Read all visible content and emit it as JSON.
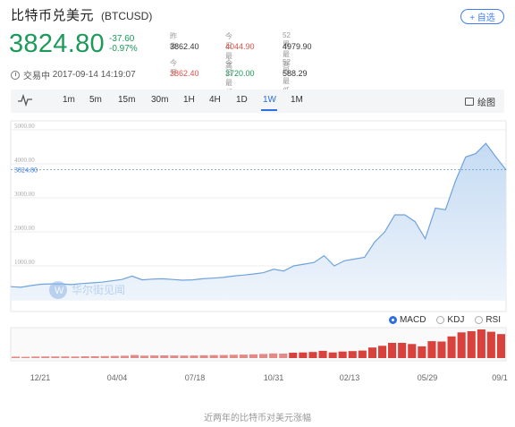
{
  "header": {
    "title": "比特币兑美元",
    "symbol": "(BTCUSD)",
    "add_label": "+ 自选"
  },
  "quote": {
    "price": "3824.80",
    "change": "-37.60",
    "change_pct": "-0.97%"
  },
  "stats": [
    {
      "label": "昨收",
      "value": "3862.40",
      "tone": "plain"
    },
    {
      "label": "今日最高",
      "value": "4044.90",
      "tone": "red"
    },
    {
      "label": "52周最高",
      "value": "4979.90",
      "tone": "plain"
    },
    {
      "label": "今开",
      "value": "3862.40",
      "tone": "red"
    },
    {
      "label": "今日最低",
      "value": "3720.00",
      "tone": "green"
    },
    {
      "label": "52周最低",
      "value": "588.29",
      "tone": "plain"
    }
  ],
  "status": {
    "state": "交易中",
    "datetime": "2017-09-14 14:19:07"
  },
  "toolbar": {
    "intervals": [
      "1m",
      "5m",
      "15m",
      "30m",
      "1H",
      "4H",
      "1D",
      "1W",
      "1M"
    ],
    "active": "1W",
    "draw_label": "绘图"
  },
  "indicators": {
    "items": [
      "MACD",
      "KDJ",
      "RSI"
    ],
    "active": "MACD"
  },
  "watermark": "华尔街见闻",
  "chart_data": {
    "type": "area",
    "current_label": "3824.80",
    "ylim": [
      0,
      5000
    ],
    "y_ticks": [
      "5000.00",
      "4000.00",
      "3000.00",
      "2000.00",
      "1000.00",
      "0.00"
    ],
    "x_ticks": [
      "12/21",
      "04/04",
      "07/18",
      "10/31",
      "02/13",
      "05/29",
      "09/1"
    ],
    "values": [
      390,
      370,
      420,
      460,
      470,
      470,
      450,
      480,
      500,
      520,
      560,
      600,
      700,
      590,
      610,
      620,
      600,
      580,
      590,
      620,
      640,
      660,
      700,
      730,
      760,
      800,
      900,
      850,
      1000,
      1050,
      1100,
      1300,
      1000,
      1150,
      1200,
      1250,
      1700,
      2000,
      2500,
      2500,
      2300,
      1800,
      2700,
      2650,
      3500,
      4200,
      4300,
      4600,
      4200,
      3824.8
    ],
    "volume": [
      120,
      110,
      130,
      140,
      135,
      140,
      130,
      150,
      160,
      170,
      180,
      200,
      260,
      210,
      220,
      230,
      220,
      215,
      220,
      240,
      250,
      260,
      280,
      300,
      320,
      350,
      400,
      380,
      460,
      480,
      520,
      620,
      480,
      560,
      600,
      640,
      900,
      1050,
      1300,
      1300,
      1200,
      1000,
      1450,
      1420,
      1850,
      2200,
      2300,
      2450,
      2250,
      2050
    ]
  },
  "caption": "近两年的比特币对美元涨幅"
}
